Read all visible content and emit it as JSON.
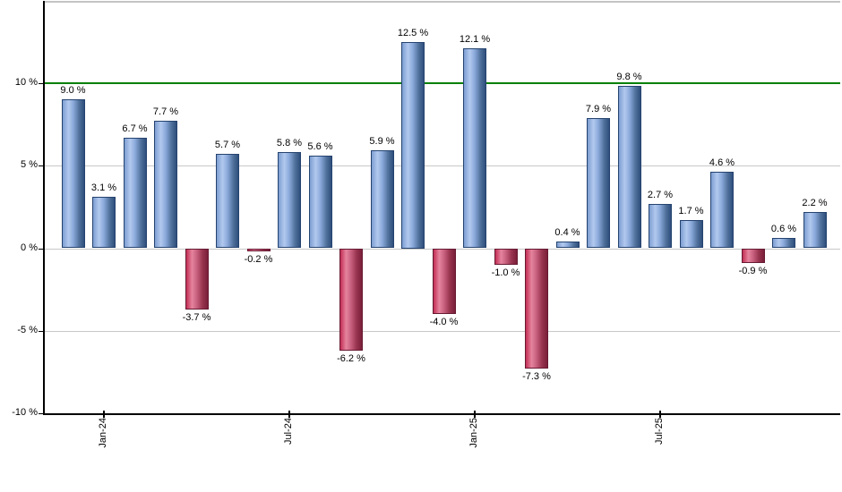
{
  "chart_data": {
    "type": "bar",
    "title": "",
    "unit": "%",
    "values": [
      9.0,
      3.1,
      6.7,
      7.7,
      -3.7,
      5.7,
      -0.2,
      5.8,
      5.6,
      -6.2,
      5.9,
      12.5,
      -4.0,
      12.1,
      -1.0,
      -7.3,
      0.4,
      7.9,
      9.8,
      2.7,
      1.7,
      4.6,
      -0.9,
      0.6,
      2.2
    ],
    "bar_value_labels": [
      "9.0 %",
      "3.1 %",
      "6.7 %",
      "7.7 %",
      "-3.7 %",
      "5.7 %",
      "-0.2 %",
      "5.8 %",
      "5.6 %",
      "-6.2 %",
      "5.9 %",
      "12.5 %",
      "-4.0 %",
      "12.1 %",
      "-1.0 %",
      "-7.3 %",
      "0.4 %",
      "7.9 %",
      "9.8 %",
      "2.7 %",
      "1.7 %",
      "4.6 %",
      "-0.9 %",
      "0.6 %",
      "2.2 %"
    ],
    "x_ticks": [
      {
        "bar_index": 1,
        "label": "Jan-24"
      },
      {
        "bar_index": 7,
        "label": "Jul-24"
      },
      {
        "bar_index": 13,
        "label": "Jan-25"
      },
      {
        "bar_index": 19,
        "label": "Jul-25"
      }
    ],
    "y_ticks": [
      {
        "value": 10,
        "label": "10 %"
      },
      {
        "value": 5,
        "label": "5 %"
      },
      {
        "value": 0,
        "label": "0 %"
      },
      {
        "value": -5,
        "label": "-5 %"
      },
      {
        "value": -10,
        "label": "-10 %"
      }
    ],
    "ylim": [
      -10.1,
      14.9
    ],
    "grid": true,
    "legend": "none",
    "reference_line": {
      "value": 10,
      "color": "#008000"
    },
    "colors": {
      "positive_bar_gradient": [
        "#7d9ed2",
        "#b2c9ee",
        "#89a8da",
        "#54749f",
        "#2e4e7c"
      ],
      "negative_bar_gradient": [
        "#c22e54",
        "#e5849e",
        "#c65f7d",
        "#99344f",
        "#7a1f3a"
      ],
      "positive_bar_border": "#25436f",
      "negative_bar_border": "#671a33",
      "gridline": "#c8c8c8",
      "axis": "#000000",
      "top_border": "#c4c4c4",
      "background": "#ffffff"
    }
  }
}
